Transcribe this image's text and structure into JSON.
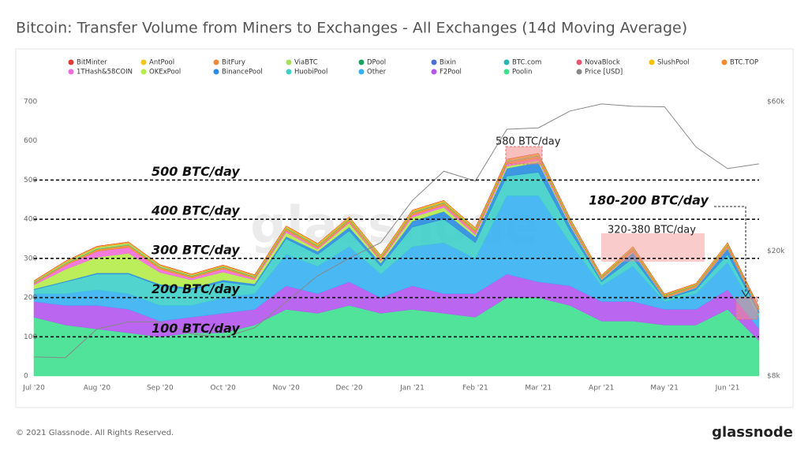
{
  "chart_data": {
    "type": "stacked_area",
    "title": "Bitcoin: Transfer Volume from Miners to Exchanges - All Exchanges (14d Moving Average)",
    "watermark": "glassnode",
    "copyright": "© 2021 Glassnode. All Rights Reserved.",
    "logo": "glassnode",
    "categories": [
      "Jul '20",
      null,
      "Aug '20",
      null,
      "Sep '20",
      null,
      "Oct '20",
      null,
      "Nov '20",
      null,
      "Dec '20",
      null,
      "Jan '21",
      null,
      "Feb '21",
      null,
      "Mar '21",
      null,
      "Apr '21",
      null,
      "May '21",
      null,
      "Jun '21",
      null
    ],
    "ylim": [
      0,
      700
    ],
    "yticks": [
      0,
      100,
      200,
      300,
      400,
      500,
      600,
      700
    ],
    "y2lim": [
      8000,
      60000
    ],
    "y2scale": "log",
    "y2ticks": [
      {
        "value": 8000,
        "label": "$8k"
      },
      {
        "value": 20000,
        "label": "$20k"
      },
      {
        "value": 60000,
        "label": "$60k"
      }
    ],
    "grid": false,
    "legend": "top",
    "series": [
      {
        "name": "BitMinter",
        "color": "#e53935",
        "values": [
          0,
          0,
          0,
          0,
          0,
          0,
          0,
          0,
          0,
          0,
          0,
          0,
          0,
          0,
          0,
          0,
          0,
          0,
          0,
          0,
          0,
          0,
          0,
          0
        ]
      },
      {
        "name": "AntPool",
        "color": "#f5c518",
        "values": [
          1,
          2,
          2,
          2,
          2,
          2,
          2,
          2,
          3,
          3,
          3,
          3,
          3,
          3,
          3,
          3,
          3,
          3,
          2,
          3,
          2,
          2,
          3,
          2
        ]
      },
      {
        "name": "BitFury",
        "color": "#f0883a",
        "values": [
          1,
          1,
          1,
          1,
          1,
          1,
          1,
          1,
          1,
          1,
          1,
          1,
          1,
          1,
          1,
          1,
          1,
          1,
          1,
          1,
          1,
          1,
          1,
          1
        ]
      },
      {
        "name": "ViaBTC",
        "color": "#a6e05a",
        "values": [
          2,
          3,
          4,
          4,
          3,
          2,
          2,
          2,
          2,
          2,
          2,
          2,
          2,
          2,
          2,
          2,
          2,
          2,
          1,
          1,
          1,
          1,
          1,
          1
        ]
      },
      {
        "name": "DPool",
        "color": "#1aa160",
        "values": [
          0,
          0,
          0,
          0,
          0,
          0,
          0,
          0,
          0,
          0,
          0,
          0,
          0,
          0,
          0,
          0,
          0,
          0,
          0,
          0,
          0,
          0,
          0,
          0
        ]
      },
      {
        "name": "Bixin",
        "color": "#4a6fd1",
        "values": [
          0,
          0,
          0,
          0,
          0,
          0,
          0,
          0,
          0,
          0,
          0,
          0,
          0,
          0,
          0,
          0,
          0,
          0,
          0,
          0,
          0,
          0,
          0,
          0
        ]
      },
      {
        "name": "BTC.com",
        "color": "#26b5b5",
        "values": [
          1,
          1,
          1,
          1,
          1,
          1,
          1,
          1,
          1,
          1,
          1,
          1,
          1,
          1,
          1,
          1,
          1,
          1,
          1,
          1,
          1,
          1,
          1,
          1
        ]
      },
      {
        "name": "NovaBlock",
        "color": "#e8566c",
        "values": [
          0,
          0,
          0,
          0,
          0,
          0,
          0,
          0,
          0,
          0,
          0,
          0,
          0,
          0,
          0,
          0,
          0,
          0,
          0,
          0,
          0,
          0,
          0,
          0
        ]
      },
      {
        "name": "SlushPool",
        "color": "#f5c000",
        "values": [
          1,
          1,
          1,
          1,
          1,
          1,
          1,
          1,
          1,
          1,
          1,
          1,
          1,
          1,
          1,
          1,
          1,
          1,
          1,
          1,
          1,
          1,
          1,
          1
        ]
      },
      {
        "name": "BTC.TOP",
        "color": "#f28a2e",
        "values": [
          2,
          3,
          4,
          5,
          4,
          3,
          3,
          3,
          4,
          4,
          5,
          4,
          5,
          5,
          5,
          5,
          5,
          4,
          3,
          4,
          3,
          3,
          5,
          2
        ]
      },
      {
        "name": "1THash&58COIN",
        "color": "#f06bd8",
        "values": [
          3,
          10,
          15,
          15,
          8,
          5,
          8,
          3,
          5,
          3,
          3,
          3,
          5,
          5,
          5,
          5,
          5,
          3,
          1,
          2,
          1,
          1,
          2,
          1
        ]
      },
      {
        "name": "OKExPool",
        "color": "#b5ec4a",
        "values": [
          10,
          30,
          40,
          50,
          30,
          20,
          20,
          10,
          10,
          5,
          10,
          5,
          10,
          10,
          5,
          5,
          5,
          3,
          2,
          2,
          1,
          1,
          1,
          1
        ]
      },
      {
        "name": "BinancePool",
        "color": "#2a8be0",
        "values": [
          2,
          2,
          3,
          3,
          4,
          5,
          5,
          5,
          6,
          8,
          10,
          8,
          15,
          20,
          15,
          20,
          25,
          15,
          5,
          15,
          3,
          5,
          15,
          5
        ]
      },
      {
        "name": "HuobiPool",
        "color": "#3ecfc8",
        "values": [
          10,
          30,
          40,
          50,
          50,
          40,
          40,
          20,
          40,
          30,
          40,
          20,
          50,
          60,
          40,
          50,
          60,
          30,
          10,
          20,
          5,
          10,
          20,
          10
        ]
      },
      {
        "name": "Other",
        "color": "#35b0f2",
        "values": [
          20,
          30,
          40,
          40,
          40,
          30,
          40,
          40,
          80,
          70,
          90,
          60,
          100,
          130,
          90,
          200,
          220,
          110,
          40,
          90,
          20,
          40,
          70,
          30
        ]
      },
      {
        "name": "F2Pool",
        "color": "#b455f0",
        "values": [
          40,
          50,
          60,
          60,
          40,
          40,
          50,
          40,
          60,
          50,
          60,
          40,
          60,
          50,
          60,
          60,
          40,
          50,
          50,
          50,
          40,
          40,
          50,
          30
        ]
      },
      {
        "name": "Poolin",
        "color": "#3ee08e",
        "values": [
          150,
          130,
          120,
          110,
          100,
          110,
          110,
          130,
          170,
          160,
          180,
          160,
          170,
          160,
          150,
          200,
          200,
          180,
          140,
          140,
          130,
          130,
          170,
          90
        ]
      },
      {
        "name": "Price [USD]",
        "color": "#888888",
        "axis": "y2",
        "type": "line",
        "values": [
          9200,
          9150,
          11300,
          11900,
          11900,
          10900,
          10600,
          11400,
          13800,
          16700,
          19000,
          21300,
          29000,
          36000,
          33500,
          49000,
          49500,
          56000,
          59000,
          58000,
          57800,
          43000,
          36700,
          38000
        ]
      }
    ],
    "reference_lines": [
      {
        "value": 500,
        "label": "500 BTC/day"
      },
      {
        "value": 400,
        "label": "400 BTC/day"
      },
      {
        "value": 300,
        "label": "300 BTC/day"
      },
      {
        "value": 200,
        "label": "200 BTC/day"
      },
      {
        "value": 100,
        "label": "100 BTC/day"
      }
    ],
    "annotations": [
      "580 BTC/day",
      "320-380 BTC/day",
      "180-200 BTC/day"
    ]
  }
}
